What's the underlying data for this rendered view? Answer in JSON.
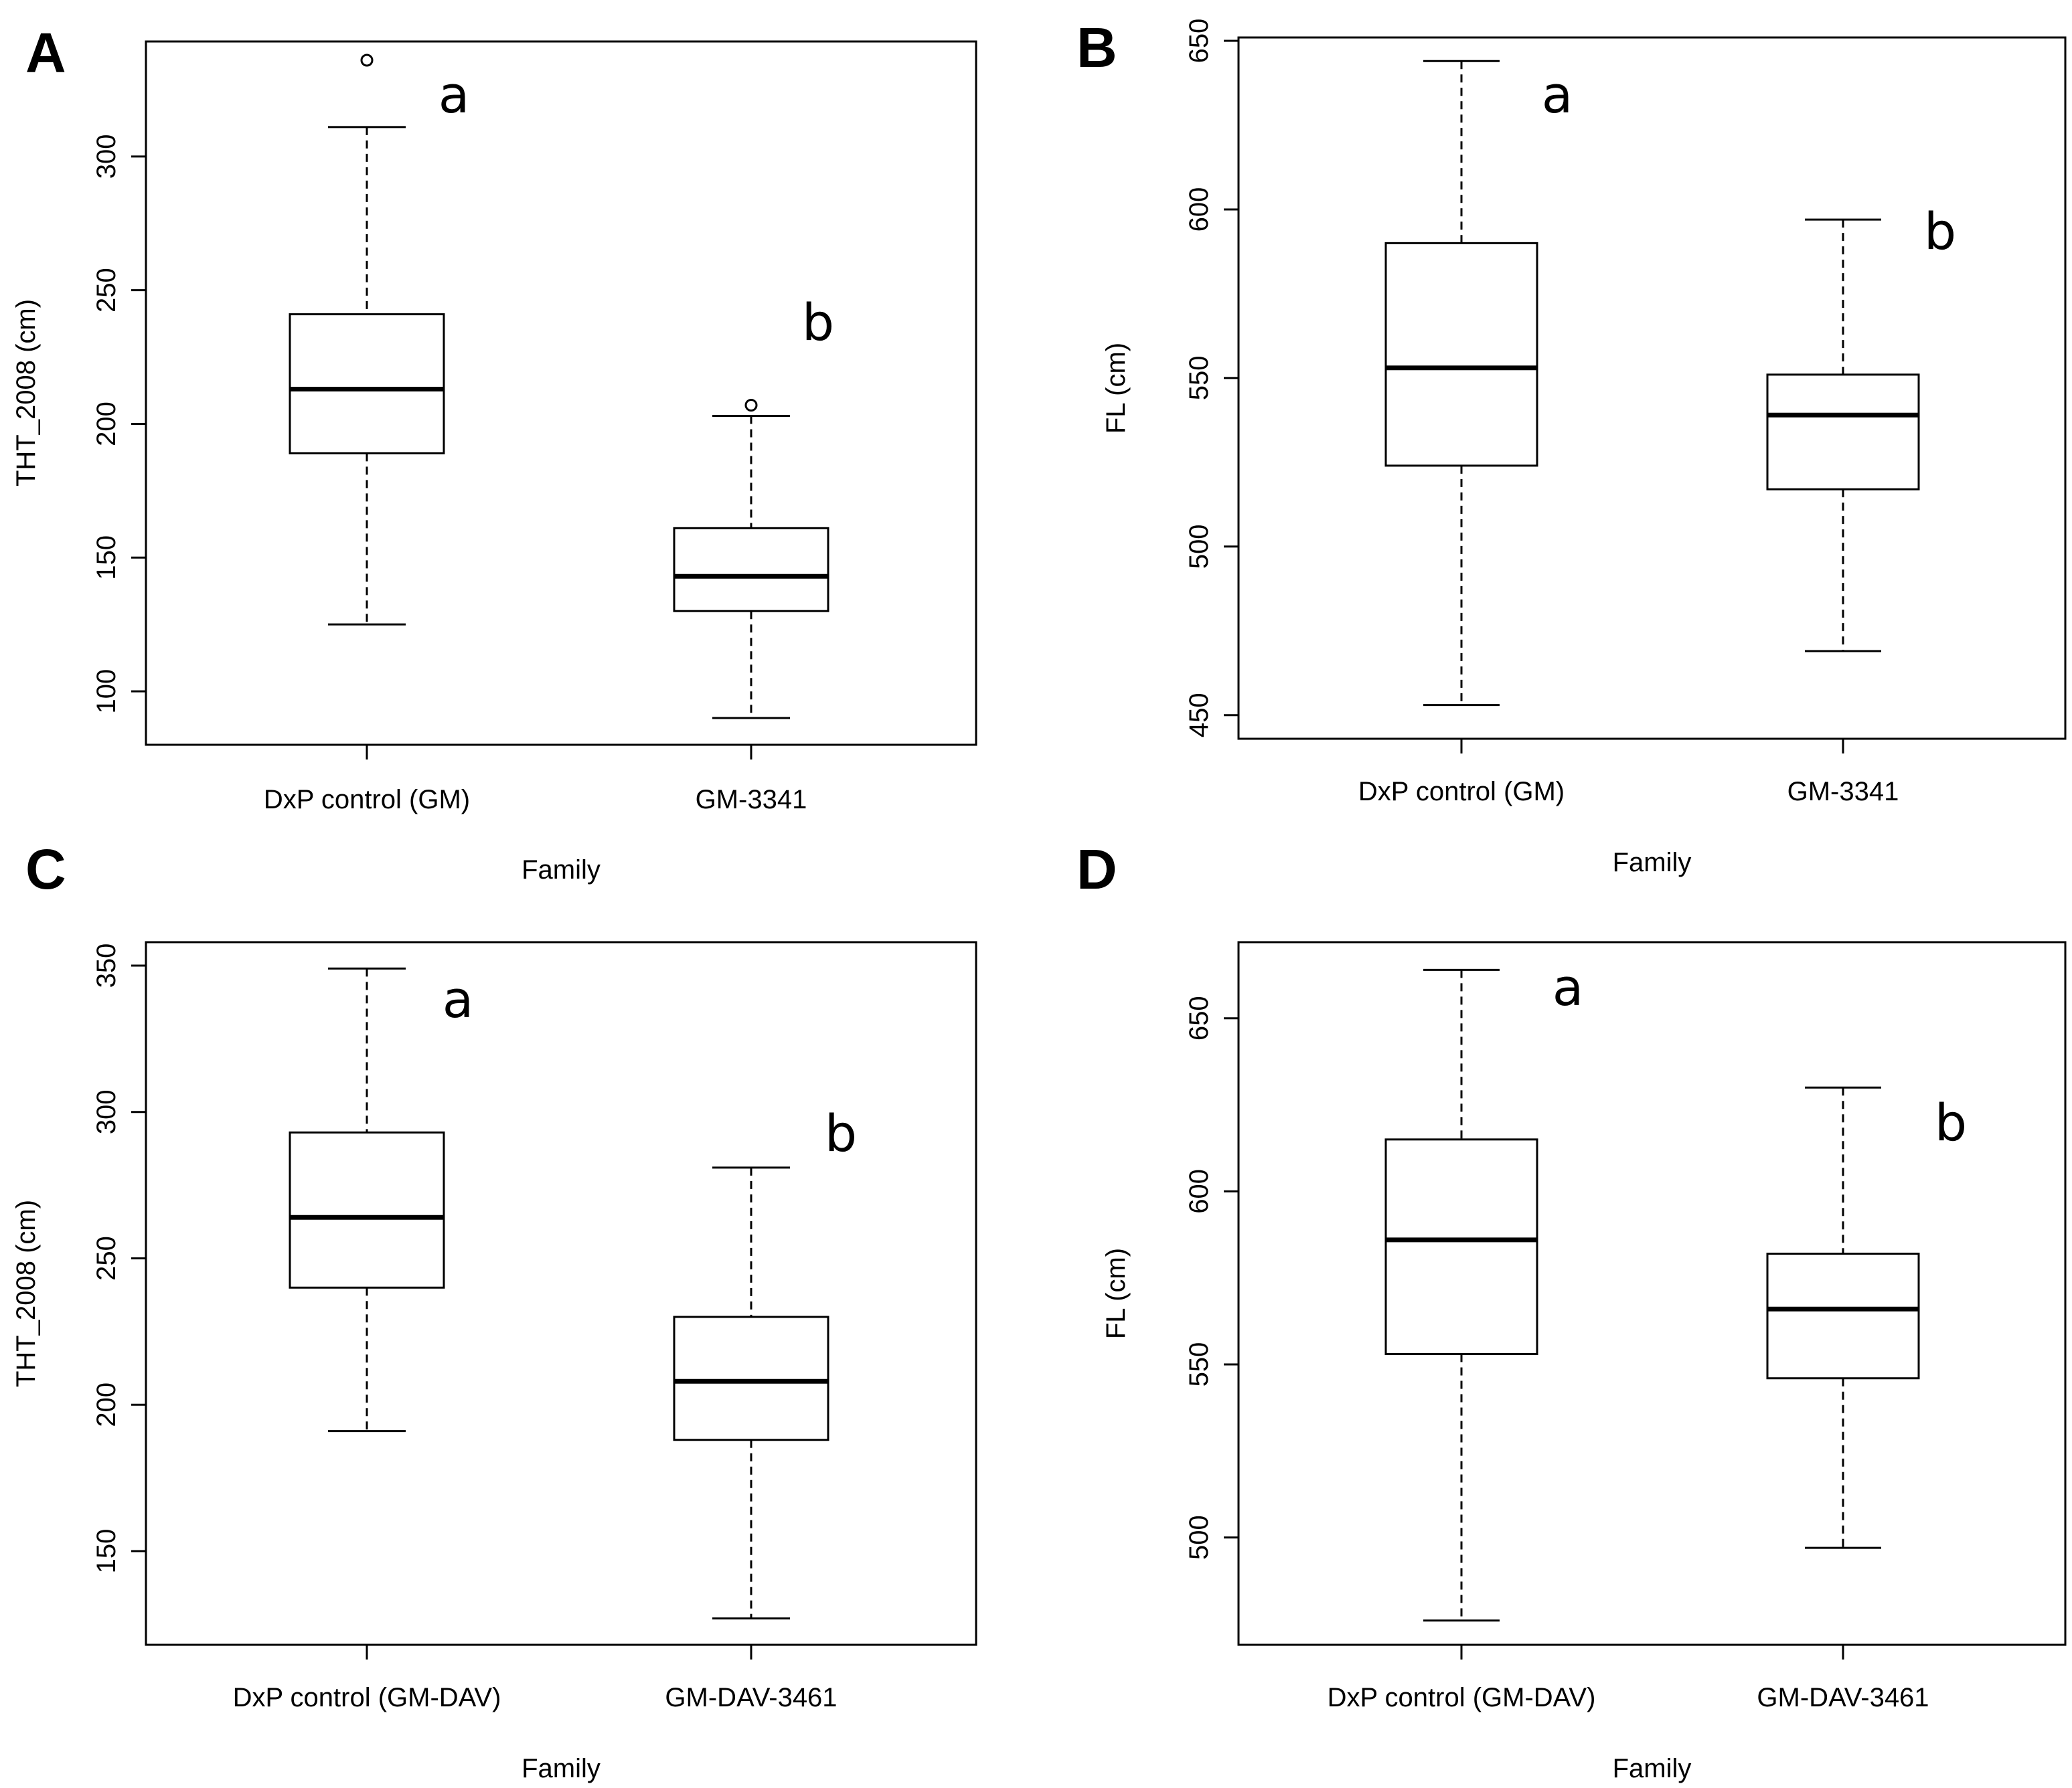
{
  "chart_data": [
    {
      "panel": "A",
      "type": "box",
      "xlabel": "Family",
      "ylabel": "THT_2008 (cm)",
      "ylim": [
        80,
        343
      ],
      "yticks": [
        100,
        150,
        200,
        250,
        300
      ],
      "categories": [
        "DxP control (GM)",
        "GM-3341"
      ],
      "boxes": [
        {
          "whisker_low": 125,
          "q1": 189,
          "median": 213,
          "q3": 241,
          "whisker_high": 311,
          "outliers": [
            336
          ],
          "letter": "a"
        },
        {
          "whisker_low": 90,
          "q1": 130,
          "median": 143,
          "q3": 161,
          "whisker_high": 203,
          "outliers": [
            207
          ],
          "letter": "b"
        }
      ]
    },
    {
      "panel": "B",
      "type": "box",
      "xlabel": "Family",
      "ylabel": "FL (cm)",
      "ylim": [
        443,
        651
      ],
      "yticks": [
        450,
        500,
        550,
        600,
        650
      ],
      "categories": [
        "DxP control (GM)",
        "GM-3341"
      ],
      "boxes": [
        {
          "whisker_low": 453,
          "q1": 524,
          "median": 553,
          "q3": 590,
          "whisker_high": 644,
          "outliers": [],
          "letter": "a"
        },
        {
          "whisker_low": 469,
          "q1": 517,
          "median": 539,
          "q3": 551,
          "whisker_high": 597,
          "outliers": [],
          "letter": "b"
        }
      ]
    },
    {
      "panel": "C",
      "type": "box",
      "xlabel": "Family",
      "ylabel": "THT_2008 (cm)",
      "ylim": [
        118,
        358
      ],
      "yticks": [
        150,
        200,
        250,
        300,
        350
      ],
      "categories": [
        "DxP control (GM-DAV)",
        "GM-DAV-3461"
      ],
      "boxes": [
        {
          "whisker_low": 191,
          "q1": 240,
          "median": 264,
          "q3": 293,
          "whisker_high": 349,
          "outliers": [],
          "letter": "a"
        },
        {
          "whisker_low": 127,
          "q1": 188,
          "median": 208,
          "q3": 230,
          "whisker_high": 281,
          "outliers": [],
          "letter": "b"
        }
      ]
    },
    {
      "panel": "D",
      "type": "box",
      "xlabel": "Family",
      "ylabel": "FL (cm)",
      "ylim": [
        469,
        672
      ],
      "yticks": [
        500,
        550,
        600,
        650
      ],
      "categories": [
        "DxP control (GM-DAV)",
        "GM-DAV-3461"
      ],
      "boxes": [
        {
          "whisker_low": 476,
          "q1": 553,
          "median": 586,
          "q3": 615,
          "whisker_high": 664,
          "outliers": [],
          "letter": "a"
        },
        {
          "whisker_low": 497,
          "q1": 546,
          "median": 566,
          "q3": 582,
          "whisker_high": 630,
          "outliers": [],
          "letter": "b"
        }
      ]
    }
  ]
}
